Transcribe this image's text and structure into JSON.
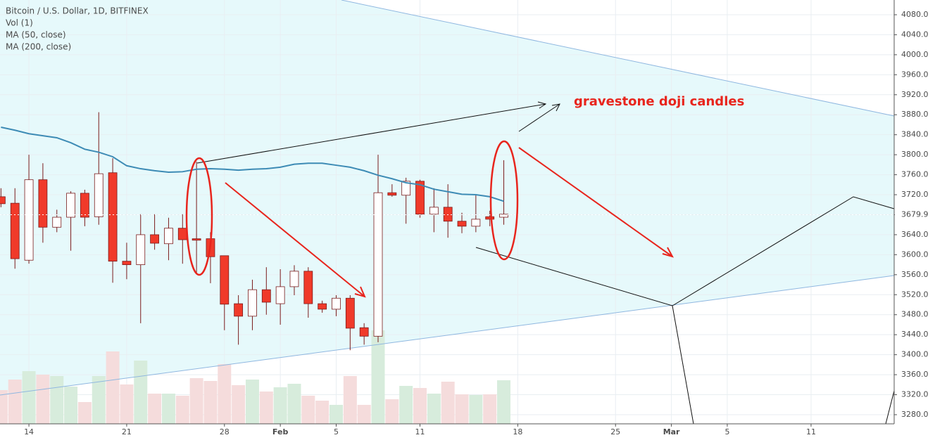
{
  "chart_data": {
    "type": "candlestick",
    "legend": [
      "Bitcoin / U.S. Dollar, 1D, BITFINEX",
      "Vol (1)",
      "MA (50, close)",
      "MA (200, close)"
    ],
    "annotation": "gravestone doji candles",
    "x": [
      -2,
      -1,
      0,
      1,
      2,
      3,
      4,
      5,
      6,
      7,
      8,
      9,
      10,
      11,
      12,
      13,
      14,
      15,
      16,
      17,
      18,
      19,
      20,
      21,
      22,
      23,
      24,
      25,
      26,
      27,
      28,
      29,
      30,
      31,
      32,
      33,
      34
    ],
    "open": [
      3716,
      3703,
      3589,
      3750,
      3655,
      3675,
      3723,
      3676,
      3764,
      3587,
      3580,
      3640,
      3622,
      3653,
      3632,
      3632,
      3598,
      3502,
      3477,
      3530,
      3502,
      3536,
      3567,
      3502,
      3491,
      3513,
      3454,
      3437,
      3724,
      3719,
      3747,
      3681,
      3695,
      3667,
      3657,
      3676,
      3675
    ],
    "high": [
      3733,
      3733,
      3800,
      3783,
      3690,
      3727,
      3730,
      3885,
      3793,
      3624,
      3681,
      3681,
      3674,
      3681,
      3786,
      3645,
      3598,
      3519,
      3550,
      3575,
      3571,
      3579,
      3575,
      3508,
      3519,
      3519,
      3463,
      3800,
      3741,
      3754,
      3750,
      3733,
      3741,
      3684,
      3719,
      3688,
      3789
    ],
    "low": [
      3695,
      3572,
      3582,
      3624,
      3645,
      3608,
      3657,
      3660,
      3544,
      3551,
      3463,
      3610,
      3589,
      3582,
      3561,
      3543,
      3449,
      3420,
      3449,
      3480,
      3460,
      3519,
      3474,
      3484,
      3477,
      3409,
      3420,
      3425,
      3716,
      3662,
      3674,
      3645,
      3634,
      3643,
      3645,
      3657,
      3660
    ],
    "close": [
      3702,
      3592,
      3750,
      3655,
      3675,
      3723,
      3675,
      3762,
      3587,
      3580,
      3640,
      3623,
      3653,
      3630,
      3629,
      3596,
      3501,
      3477,
      3530,
      3505,
      3536,
      3567,
      3502,
      3491,
      3513,
      3453,
      3437,
      3724,
      3719,
      3747,
      3681,
      3695,
      3667,
      3657,
      3671,
      3671,
      3681
    ],
    "volume": [
      48,
      63,
      75,
      70,
      68,
      53,
      31,
      68,
      103,
      56,
      90,
      43,
      43,
      40,
      65,
      61,
      85,
      55,
      63,
      46,
      52,
      57,
      40,
      33,
      27,
      68,
      27,
      133,
      35,
      54,
      51,
      43,
      60,
      42,
      41,
      42,
      62
    ],
    "ma50": {
      "color": "#3d8bb5",
      "values": [
        3855,
        3849,
        3842,
        3838,
        3834,
        3824,
        3811,
        3805,
        3796,
        3778,
        3772,
        3768,
        3765,
        3766,
        3771,
        3772,
        3771,
        3769,
        3771,
        3772,
        3775,
        3781,
        3783,
        3783,
        3779,
        3775,
        3768,
        3759,
        3752,
        3744,
        3740,
        3731,
        3726,
        3721,
        3720,
        3716,
        3707
      ]
    },
    "up_color": "#ffffff",
    "down_color": "#f03a2a",
    "wick_color": "#7b1c1c",
    "volume_up_color": "#d7ecdc",
    "volume_down_color": "#f5dcdc",
    "xlim": [
      -2.07,
      61.95
    ],
    "xticks": [
      {
        "value": 0,
        "label": "14"
      },
      {
        "value": 7,
        "label": "21"
      },
      {
        "value": 14,
        "label": "28"
      },
      {
        "value": 18,
        "label": "Feb"
      },
      {
        "value": 22,
        "label": "5"
      },
      {
        "value": 28,
        "label": "11"
      },
      {
        "value": 35,
        "label": "18"
      },
      {
        "value": 42,
        "label": "25"
      },
      {
        "value": 46,
        "label": "Mar"
      },
      {
        "value": 50,
        "label": "5"
      },
      {
        "value": 56,
        "label": "11"
      }
    ],
    "ylim": [
      3261.7,
      4109.5
    ],
    "yticks": [
      {
        "value": 3280,
        "label": "3280.0"
      },
      {
        "value": 3320,
        "label": "3320.0"
      },
      {
        "value": 3360,
        "label": "3360.0"
      },
      {
        "value": 3400,
        "label": "3400.0"
      },
      {
        "value": 3440,
        "label": "3440.0"
      },
      {
        "value": 3480,
        "label": "3480.0"
      },
      {
        "value": 3520,
        "label": "3520.0"
      },
      {
        "value": 3560,
        "label": "3560.0"
      },
      {
        "value": 3600,
        "label": "3600.0"
      },
      {
        "value": 3640,
        "label": "3640.0"
      },
      {
        "value": 3680,
        "label": "3680.0"
      },
      {
        "value": 3720,
        "label": "3720.0"
      },
      {
        "value": 3760,
        "label": "3760.0"
      },
      {
        "value": 3800,
        "label": "3800.0"
      },
      {
        "value": 3840,
        "label": "3840.0"
      },
      {
        "value": 3880,
        "label": "3880.0"
      },
      {
        "value": 3920,
        "label": "3920.0"
      },
      {
        "value": 3960,
        "label": "3960.0"
      },
      {
        "value": 4000,
        "label": "4000.0"
      },
      {
        "value": 4040,
        "label": "4040.0"
      },
      {
        "value": 4080,
        "label": "4080.0"
      }
    ],
    "vlim": [
      0,
      200
    ],
    "last_price": {
      "value": 3679.9,
      "label": "3679.9"
    },
    "grid": true
  }
}
